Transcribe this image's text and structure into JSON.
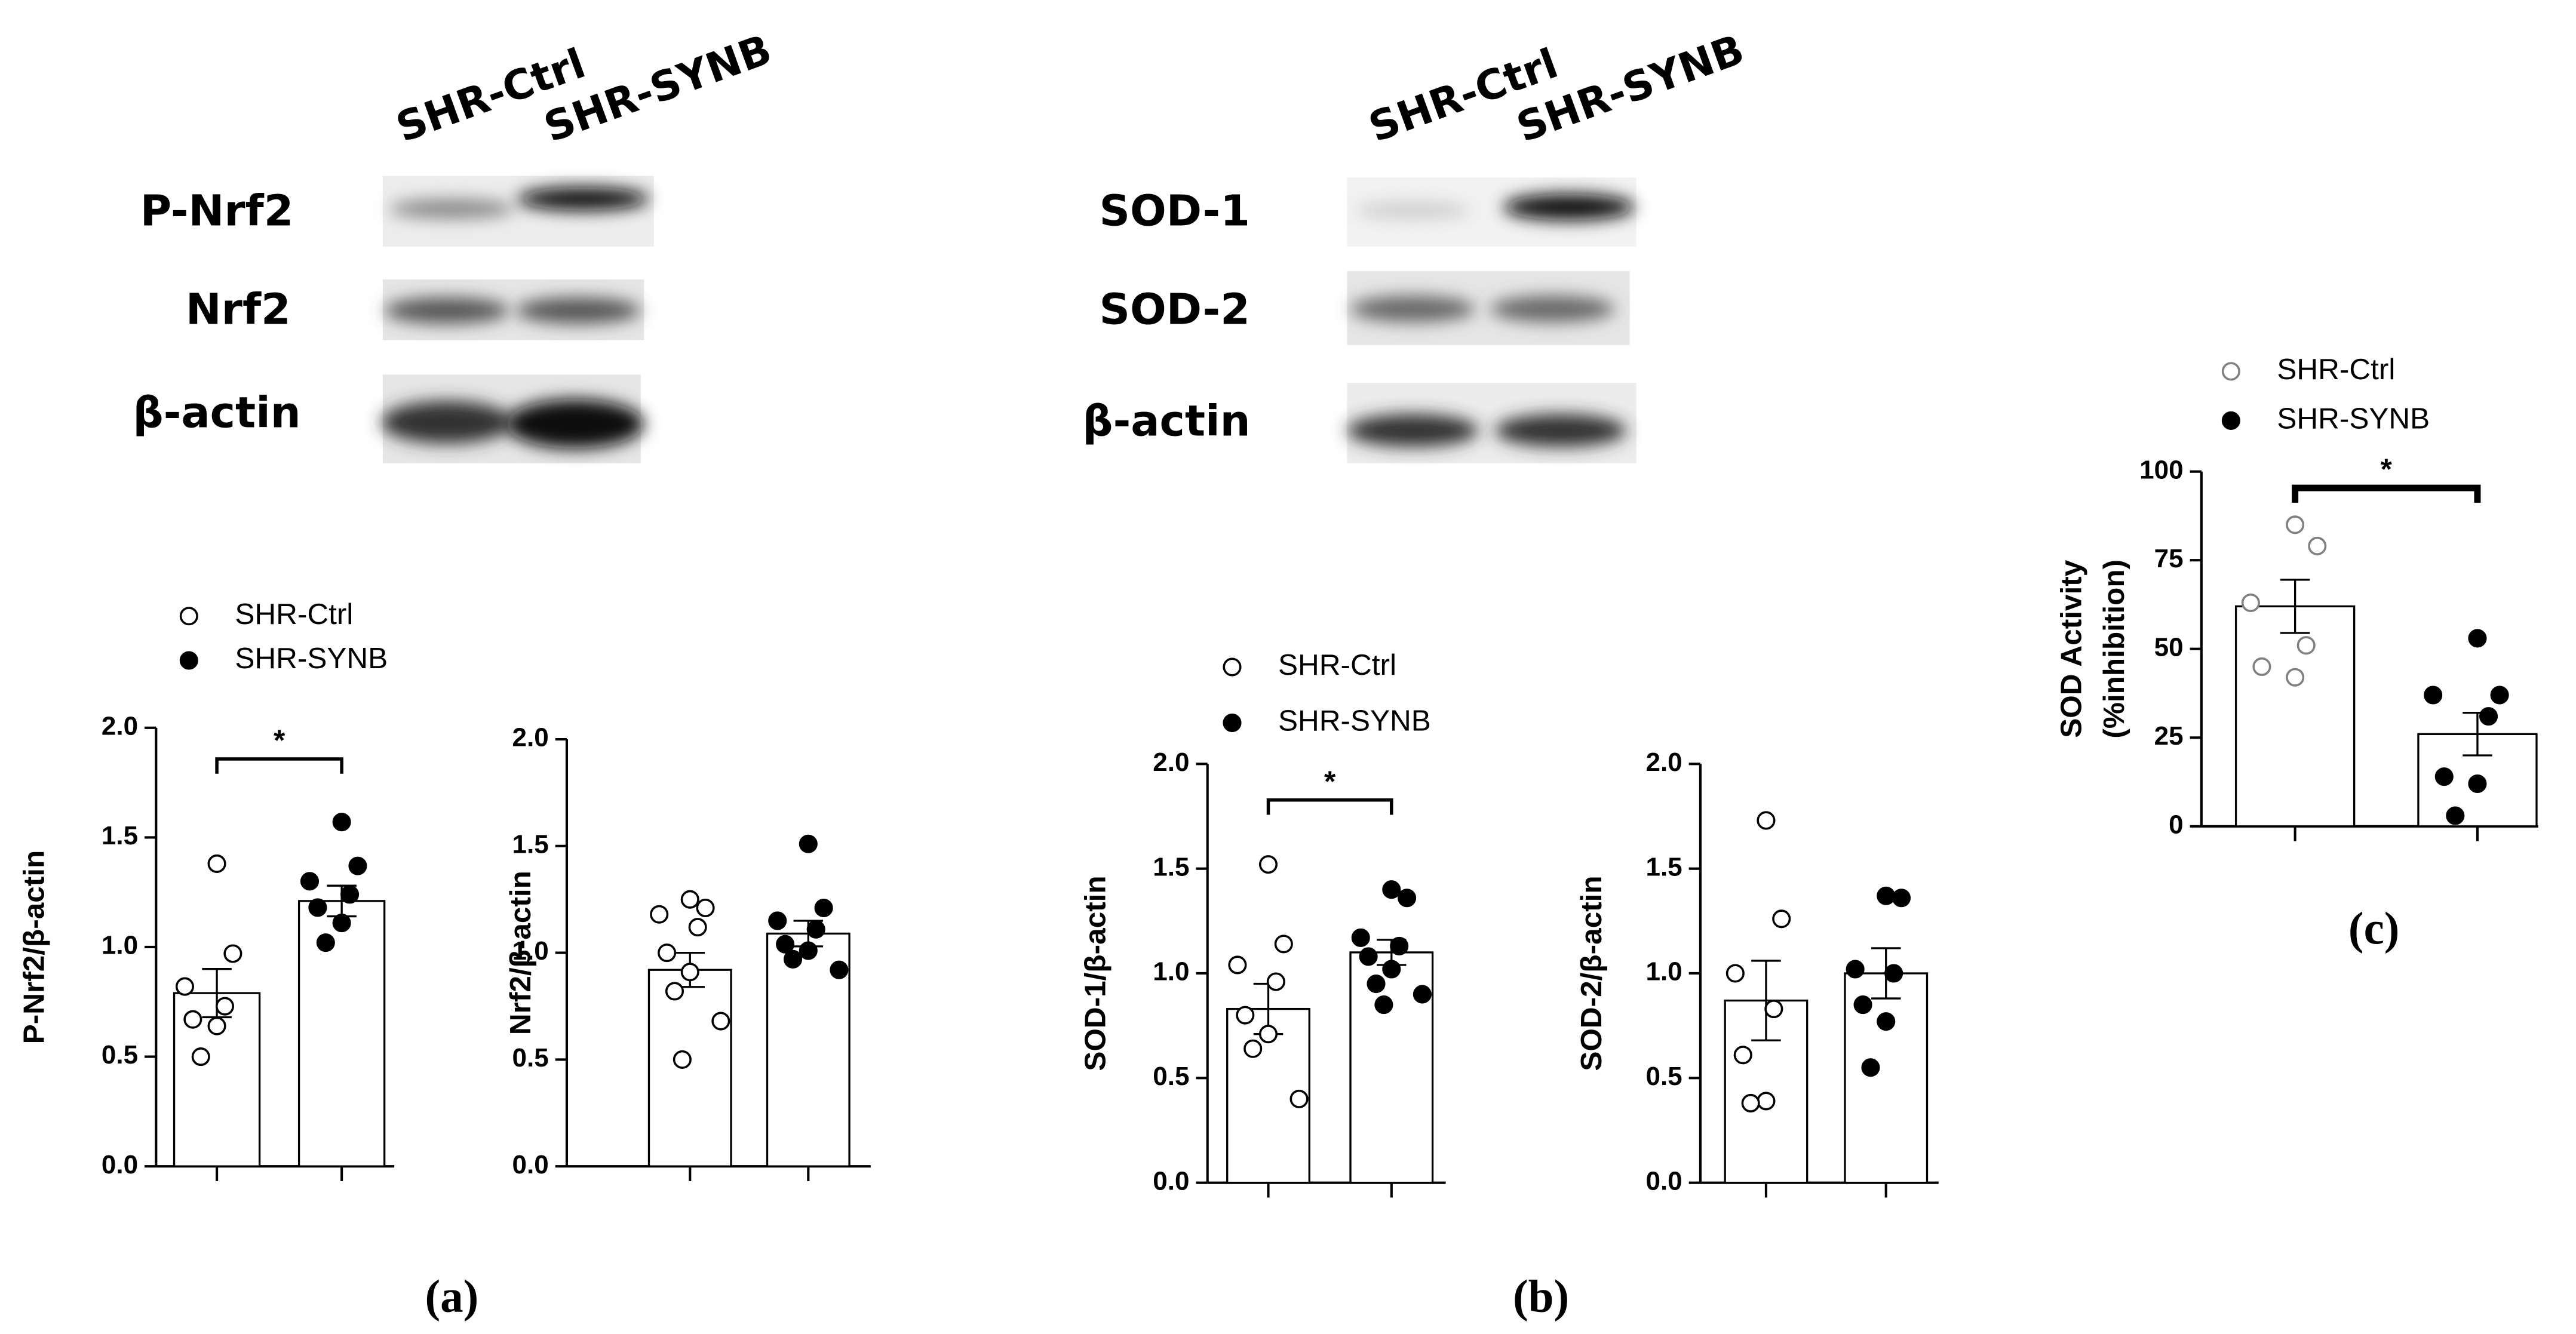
{
  "blots": [
    {
      "lanes": [
        "SHR-Ctrl",
        "SHR-SYNB"
      ],
      "rows": [
        "P-Nrf2",
        "Nrf2",
        "β-actin"
      ]
    },
    {
      "lanes": [
        "SHR-Ctrl",
        "SHR-SYNB"
      ],
      "rows": [
        "SOD-1",
        "SOD-2",
        "β-actin"
      ]
    }
  ],
  "panel_labels": [
    "(a)",
    "(b)",
    "(c)"
  ],
  "chart_data": [
    {
      "type": "bar",
      "ylabel": "P-Nrf2/β-actin",
      "annotation": "*",
      "ylim": [
        0,
        2
      ],
      "yticks": [
        {
          "value": 0,
          "label": "0.0"
        },
        {
          "value": 0.5,
          "label": "0.5"
        },
        {
          "value": 1,
          "label": "1.0"
        },
        {
          "value": 1.5,
          "label": "1.5"
        },
        {
          "value": 2,
          "label": "2.0"
        }
      ],
      "series": [
        {
          "name": "SHR-Ctrl",
          "marker": "open",
          "color": "#000000",
          "value": 0.79,
          "error": 0.11,
          "points": [
            1.38,
            0.97,
            0.82,
            0.73,
            0.67,
            0.64,
            0.5
          ]
        },
        {
          "name": "SHR-SYNB",
          "marker": "filled",
          "color": "#000000",
          "value": 1.21,
          "error": 0.07,
          "points": [
            1.57,
            1.37,
            1.3,
            1.24,
            1.18,
            1.11,
            1.02
          ]
        }
      ]
    },
    {
      "type": "bar",
      "ylabel": "Nrf2/β-actin",
      "ylim": [
        0,
        2
      ],
      "yticks": [
        {
          "value": 0,
          "label": "0.0"
        },
        {
          "value": 0.5,
          "label": "0.5"
        },
        {
          "value": 1,
          "label": "1.0"
        },
        {
          "value": 1.5,
          "label": "1.5"
        },
        {
          "value": 2,
          "label": "2.0"
        }
      ],
      "series": [
        {
          "marker": "open",
          "color": "#000000",
          "value": 0.92,
          "error": 0.08,
          "points": [
            1.25,
            1.21,
            1.18,
            1.12,
            1.0,
            0.91,
            0.82,
            0.68,
            0.5
          ]
        },
        {
          "marker": "filled",
          "color": "#000000",
          "value": 1.09,
          "error": 0.06,
          "points": [
            1.51,
            1.21,
            1.15,
            1.11,
            1.04,
            1.01,
            0.97,
            0.92
          ]
        }
      ]
    },
    {
      "type": "bar",
      "ylabel": "SOD-1/β-actin",
      "annotation": "*",
      "ylim": [
        0,
        2
      ],
      "yticks": [
        {
          "value": 0,
          "label": "0.0"
        },
        {
          "value": 0.5,
          "label": "0.5"
        },
        {
          "value": 1,
          "label": "1.0"
        },
        {
          "value": 1.5,
          "label": "1.5"
        },
        {
          "value": 2,
          "label": "2.0"
        }
      ],
      "series": [
        {
          "name": "SHR-Ctrl",
          "marker": "open",
          "color": "#000000",
          "value": 0.83,
          "error": 0.12,
          "points": [
            1.52,
            1.14,
            1.04,
            0.96,
            0.8,
            0.71,
            0.64,
            0.4
          ]
        },
        {
          "name": "SHR-SYNB",
          "marker": "filled",
          "color": "#000000",
          "value": 1.1,
          "error": 0.06,
          "points": [
            1.4,
            1.36,
            1.17,
            1.13,
            1.08,
            1.02,
            0.95,
            0.9,
            0.85
          ]
        }
      ]
    },
    {
      "type": "bar",
      "ylabel": "SOD-2/β-actin",
      "ylim": [
        0,
        2
      ],
      "yticks": [
        {
          "value": 0,
          "label": "0.0"
        },
        {
          "value": 0.5,
          "label": "0.5"
        },
        {
          "value": 1,
          "label": "1.0"
        },
        {
          "value": 1.5,
          "label": "1.5"
        },
        {
          "value": 2,
          "label": "2.0"
        }
      ],
      "series": [
        {
          "marker": "open",
          "color": "#000000",
          "value": 0.87,
          "error": 0.19,
          "points": [
            1.73,
            1.26,
            1.0,
            0.83,
            0.61,
            0.39,
            0.38
          ]
        },
        {
          "marker": "filled",
          "color": "#000000",
          "value": 1.0,
          "error": 0.12,
          "points": [
            1.37,
            1.36,
            1.02,
            1.0,
            0.85,
            0.77,
            0.55
          ]
        }
      ]
    },
    {
      "type": "bar",
      "ylabel": [
        "SOD Activity",
        "(%inhibition)"
      ],
      "annotation": "*",
      "ylim": [
        0,
        100
      ],
      "yticks": [
        0,
        25,
        50,
        75,
        100
      ],
      "series": [
        {
          "name": "SHR-Ctrl",
          "marker": "open",
          "color": "#808080",
          "value": 62,
          "error": 7.5,
          "points": [
            85,
            79,
            63,
            51,
            45,
            42
          ]
        },
        {
          "name": "SHR-SYNB",
          "marker": "filled",
          "color": "#000000",
          "value": 26,
          "error": 6,
          "points": [
            53,
            37,
            37,
            31,
            14,
            12,
            3
          ]
        }
      ]
    }
  ]
}
